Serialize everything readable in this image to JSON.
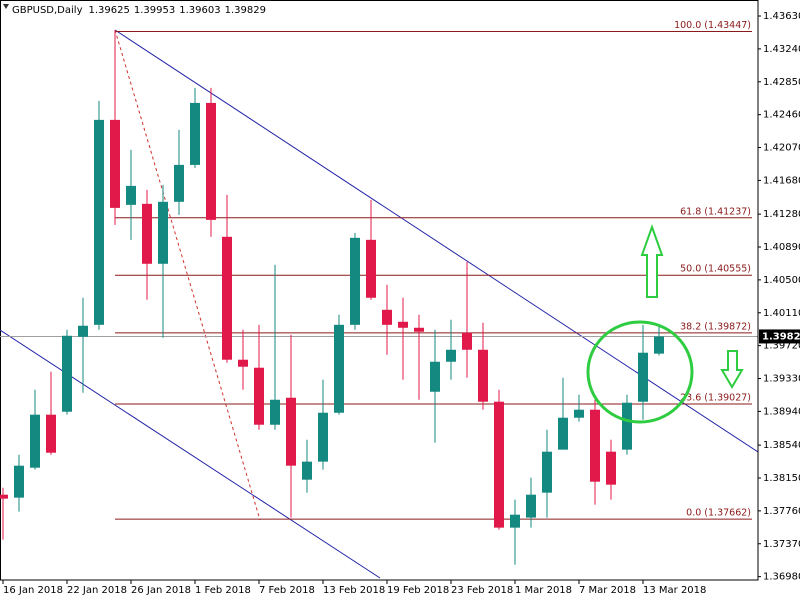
{
  "chart_data": {
    "type": "candlestick",
    "title": "GBPUSD,Daily",
    "categories": [
      "16 Jan 2018",
      null,
      null,
      null,
      "22 Jan 2018",
      null,
      null,
      null,
      "26 Jan 2018",
      null,
      null,
      null,
      "1 Feb 2018",
      null,
      null,
      null,
      "7 Feb 2018",
      null,
      null,
      null,
      "13 Feb 2018",
      null,
      null,
      null,
      "19 Feb 2018",
      null,
      null,
      null,
      "23 Feb 2018",
      null,
      null,
      null,
      "1 Mar 2018",
      null,
      null,
      null,
      "7 Mar 2018",
      null,
      null,
      null,
      "13 Mar 2018",
      null
    ],
    "open": [
      1.37952,
      1.37917,
      1.38272,
      1.38901,
      1.38936,
      1.39825,
      1.39967,
      1.42398,
      1.4139,
      1.41402,
      1.40691,
      1.41426,
      1.41864,
      1.42599,
      1.41011,
      1.39553,
      1.39458,
      1.38782,
      1.39102,
      1.3813,
      1.38344,
      1.38924,
      1.39967,
      1.40975,
      1.40145,
      1.40003,
      1.39932,
      1.39173,
      1.39529,
      1.39873,
      1.39671,
      1.39055,
      1.37561,
      1.3768,
      1.37976,
      1.38486,
      1.38865,
      1.3896,
      1.38462,
      1.38486,
      1.39055,
      1.39625
    ],
    "high": [
      1.38035,
      1.38426,
      1.39197,
      1.3941,
      1.39908,
      1.40288,
      1.42623,
      1.43464,
      1.42042,
      1.41568,
      1.41627,
      1.42279,
      1.42777,
      1.42777,
      1.41508,
      1.39908,
      1.39967,
      1.40679,
      1.39849,
      1.38604,
      1.39316,
      1.40086,
      1.41058,
      1.41449,
      1.40442,
      1.40288,
      1.40086,
      1.39908,
      1.40027,
      1.40714,
      1.39991,
      1.39197,
      1.37893,
      1.38154,
      1.38723,
      1.39339,
      1.39138,
      1.39078,
      1.38604,
      1.39138,
      1.39967,
      1.39953
    ],
    "low": [
      1.37419,
      1.37751,
      1.38249,
      1.38426,
      1.38901,
      1.39161,
      1.39908,
      1.41153,
      1.40975,
      1.40264,
      1.39813,
      1.41271,
      1.41829,
      1.41011,
      1.39517,
      1.39197,
      1.38723,
      1.38723,
      1.3768,
      1.37976,
      1.38249,
      1.38901,
      1.39908,
      1.40264,
      1.39612,
      1.39316,
      1.39078,
      1.38569,
      1.39316,
      1.39339,
      1.3896,
      1.37537,
      1.37122,
      1.37561,
      1.3768,
      1.38486,
      1.38818,
      1.37834,
      1.37893,
      1.38426,
      1.38841,
      1.39603
    ],
    "close": [
      1.37905,
      1.38296,
      1.38901,
      1.3845,
      1.39837,
      1.39956,
      1.42398,
      1.41354,
      1.41615,
      1.40691,
      1.41426,
      1.41864,
      1.42599,
      1.41212,
      1.39553,
      1.3947,
      1.38782,
      1.39078,
      1.38296,
      1.38344,
      1.38924,
      1.39967,
      1.40999,
      1.40288,
      1.39967,
      1.39932,
      1.39885,
      1.39529,
      1.39671,
      1.39671,
      1.39055,
      1.37561,
      1.37715,
      1.37952,
      1.38462,
      1.38865,
      1.3896,
      1.38106,
      1.38071,
      1.39043,
      1.39636,
      1.39829
    ],
    "up_color": "#14897f",
    "down_color": "#e0194a",
    "ylim": [
      1.3694,
      1.4382
    ],
    "yticks": [
      {
        "value": 1.4363,
        "label": "1.43630"
      },
      {
        "value": 1.4324,
        "label": "1.43240"
      },
      {
        "value": 1.4285,
        "label": "1.42850"
      },
      {
        "value": 1.4246,
        "label": "1.42460"
      },
      {
        "value": 1.4207,
        "label": "1.42070"
      },
      {
        "value": 1.4168,
        "label": "1.41680"
      },
      {
        "value": 1.4128,
        "label": "1.41280"
      },
      {
        "value": 1.4089,
        "label": "1.40890"
      },
      {
        "value": 1.405,
        "label": "1.40500"
      },
      {
        "value": 1.4011,
        "label": "1.40110"
      },
      {
        "value": 1.3972,
        "label": "1.39720"
      },
      {
        "value": 1.3933,
        "label": "1.39330"
      },
      {
        "value": 1.3894,
        "label": "1.38940"
      },
      {
        "value": 1.3854,
        "label": "1.38540"
      },
      {
        "value": 1.3815,
        "label": "1.38150"
      },
      {
        "value": 1.3776,
        "label": "1.37760"
      },
      {
        "value": 1.3737,
        "label": "1.37370"
      },
      {
        "value": 1.3698,
        "label": "1.36980"
      }
    ],
    "fibonacci": [
      {
        "label": "100.0 (1.43447)",
        "price": 1.43447
      },
      {
        "label": "61.8 (1.41237)",
        "price": 1.41237
      },
      {
        "label": "50.0 (1.40555)",
        "price": 1.40555
      },
      {
        "label": "38.2 (1.39872)",
        "price": 1.39872
      },
      {
        "label": "23.6 (1.39027)",
        "price": 1.39027
      },
      {
        "label": "0.0 (1.37662)",
        "price": 1.37662
      }
    ],
    "fib_color": "#8b1a1a"
  }
}
